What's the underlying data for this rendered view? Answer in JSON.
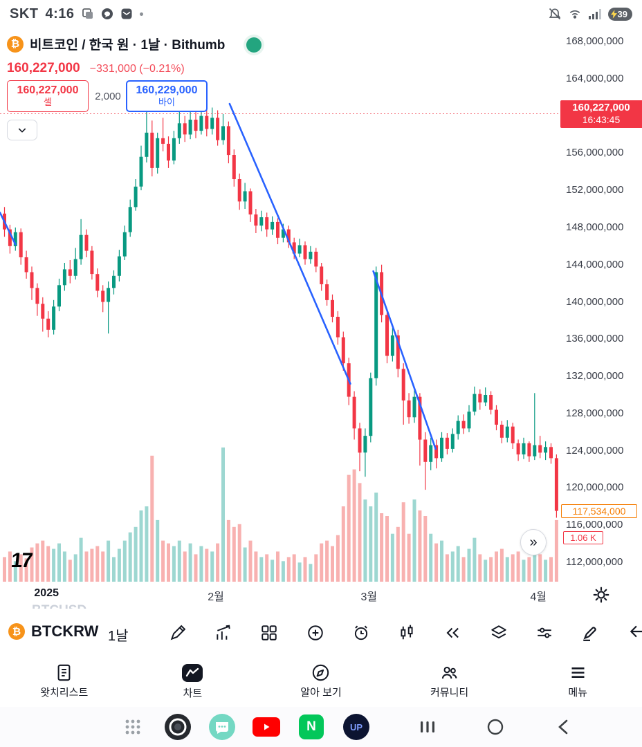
{
  "status_bar": {
    "carrier": "SKT",
    "time": "4:16",
    "battery_percent": "39"
  },
  "header": {
    "title": "비트코인 / 한국 원 · 1날 · Bithumb",
    "price": "160,227,000",
    "change": "−331,000 (−0.21%)",
    "sell_price": "160,227,000",
    "sell_label": "셀",
    "spread": "2,000",
    "buy_price": "160,229,000",
    "buy_label": "바이"
  },
  "chart": {
    "price_tag": {
      "price": "160,227,000",
      "time": "16:43:45"
    },
    "close_tag": "117,534,000",
    "volume_tag": "1.06 K",
    "expand_button": "»",
    "logo_text": "17"
  },
  "chart_data": {
    "type": "candlestick",
    "symbol": "BTCKRW",
    "exchange": "Bithumb",
    "interval": "1D",
    "unit": "million KRW",
    "current_price": 160.227,
    "last_close": 117.534,
    "y_ticks": [
      168,
      164,
      160,
      156,
      152,
      148,
      144,
      140,
      136,
      132,
      128,
      124,
      120,
      116,
      112
    ],
    "x_labels": [
      {
        "text": "2025",
        "index": 8,
        "bold": true
      },
      {
        "text": "2월",
        "index": 39,
        "bold": false
      },
      {
        "text": "3월",
        "index": 67,
        "bold": false
      },
      {
        "text": "4월",
        "index": 98,
        "bold": false
      }
    ],
    "scale": {
      "x0": 4,
      "dx": 7.9,
      "body": 5,
      "price_top": 168,
      "price_bottom": 112,
      "y_top": 60,
      "y_bottom": 813,
      "vol_base": 841,
      "vol_max": 198,
      "plot_right": 810
    },
    "colors": {
      "up": "#089981",
      "down": "#f23645",
      "vol_up": "rgba(38,166,154,0.45)",
      "vol_down": "rgba(239,83,80,0.45)",
      "trendline": "#2962ff"
    },
    "trendlines": [
      {
        "from": [
          -0.5,
          149.6
        ],
        "to": [
          2.3,
          146.2
        ]
      },
      {
        "from": [
          41.5,
          161.3
        ],
        "to": [
          63.6,
          131.2
        ]
      },
      {
        "from": [
          67.8,
          143.3
        ],
        "to": [
          79.2,
          124.2
        ]
      }
    ],
    "candles": [
      [
        149.5,
        150.2,
        147.0,
        147.8,
        0.18
      ],
      [
        147.8,
        148.3,
        145.2,
        146.0,
        0.22
      ],
      [
        146.0,
        148.0,
        145.5,
        147.5,
        0.15
      ],
      [
        147.5,
        147.9,
        144.0,
        144.8,
        0.2
      ],
      [
        144.8,
        145.5,
        142.5,
        143.2,
        0.17
      ],
      [
        143.2,
        143.8,
        140.2,
        141.5,
        0.25
      ],
      [
        141.5,
        142.0,
        138.5,
        139.8,
        0.28
      ],
      [
        139.8,
        140.5,
        136.8,
        138.2,
        0.3
      ],
      [
        138.2,
        139.0,
        136.2,
        137.0,
        0.26
      ],
      [
        137.0,
        140.2,
        136.5,
        139.5,
        0.24
      ],
      [
        139.5,
        142.5,
        139.0,
        141.8,
        0.28
      ],
      [
        141.8,
        144.2,
        141.2,
        143.5,
        0.22
      ],
      [
        143.5,
        144.5,
        142.0,
        142.8,
        0.16
      ],
      [
        142.8,
        145.8,
        142.4,
        144.6,
        0.2
      ],
      [
        144.6,
        148.9,
        144.0,
        147.2,
        0.32
      ],
      [
        147.2,
        147.8,
        144.8,
        145.5,
        0.22
      ],
      [
        145.5,
        146.0,
        142.4,
        143.0,
        0.24
      ],
      [
        143.0,
        143.6,
        140.5,
        141.2,
        0.26
      ],
      [
        141.2,
        141.8,
        138.9,
        140.0,
        0.22
      ],
      [
        140.0,
        142.2,
        136.6,
        141.5,
        0.3
      ],
      [
        141.5,
        143.4,
        140.8,
        142.8,
        0.18
      ],
      [
        142.8,
        145.6,
        142.2,
        144.9,
        0.24
      ],
      [
        144.9,
        148.2,
        144.5,
        147.5,
        0.3
      ],
      [
        147.5,
        151.0,
        147.0,
        150.2,
        0.36
      ],
      [
        150.2,
        153.2,
        149.8,
        152.4,
        0.4
      ],
      [
        152.4,
        156.8,
        152.0,
        155.6,
        0.52
      ],
      [
        155.6,
        160.8,
        155.0,
        158.2,
        0.55
      ],
      [
        158.2,
        159.5,
        153.5,
        154.4,
        0.92
      ],
      [
        154.4,
        158.2,
        153.8,
        157.6,
        0.45
      ],
      [
        157.6,
        159.8,
        156.2,
        157.0,
        0.3
      ],
      [
        157.0,
        157.8,
        154.4,
        155.2,
        0.28
      ],
      [
        155.2,
        158.4,
        154.8,
        157.6,
        0.26
      ],
      [
        157.6,
        160.5,
        157.0,
        159.2,
        0.3
      ],
      [
        159.2,
        160.0,
        157.2,
        158.0,
        0.22
      ],
      [
        158.0,
        160.9,
        157.5,
        159.6,
        0.28
      ],
      [
        159.6,
        160.4,
        157.6,
        158.4,
        0.2
      ],
      [
        158.4,
        161.0,
        158.0,
        160.0,
        0.26
      ],
      [
        160.0,
        160.8,
        157.8,
        158.6,
        0.24
      ],
      [
        158.6,
        160.9,
        158.0,
        159.8,
        0.22
      ],
      [
        159.8,
        160.6,
        156.8,
        157.4,
        0.28
      ],
      [
        157.4,
        160.2,
        156.9,
        158.9,
        0.98
      ],
      [
        158.9,
        159.4,
        154.9,
        155.8,
        0.45
      ],
      [
        155.8,
        156.4,
        152.4,
        153.2,
        0.4
      ],
      [
        153.2,
        153.8,
        149.9,
        150.8,
        0.42
      ],
      [
        150.8,
        152.8,
        150.0,
        151.9,
        0.25
      ],
      [
        151.9,
        152.2,
        148.6,
        149.4,
        0.3
      ],
      [
        149.4,
        150.0,
        147.4,
        148.2,
        0.22
      ],
      [
        148.2,
        149.8,
        147.6,
        149.1,
        0.18
      ],
      [
        149.1,
        149.6,
        147.0,
        147.8,
        0.2
      ],
      [
        147.8,
        149.2,
        147.2,
        148.6,
        0.16
      ],
      [
        148.6,
        149.0,
        146.2,
        146.9,
        0.22
      ],
      [
        146.9,
        148.4,
        146.4,
        147.8,
        0.15
      ],
      [
        147.8,
        148.2,
        145.8,
        146.4,
        0.18
      ],
      [
        146.4,
        146.9,
        144.6,
        145.2,
        0.2
      ],
      [
        145.2,
        146.8,
        144.8,
        146.1,
        0.14
      ],
      [
        146.1,
        146.5,
        144.0,
        144.6,
        0.18
      ],
      [
        144.6,
        146.0,
        144.1,
        145.4,
        0.13
      ],
      [
        145.4,
        145.8,
        143.2,
        143.8,
        0.2
      ],
      [
        143.8,
        144.2,
        141.2,
        141.9,
        0.28
      ],
      [
        141.9,
        142.4,
        139.6,
        140.2,
        0.3
      ],
      [
        140.2,
        140.8,
        137.8,
        138.4,
        0.26
      ],
      [
        138.4,
        139.0,
        135.4,
        136.2,
        0.34
      ],
      [
        136.2,
        136.8,
        132.6,
        133.4,
        0.55
      ],
      [
        133.4,
        134.0,
        128.9,
        129.8,
        0.78
      ],
      [
        129.8,
        130.4,
        125.2,
        126.4,
        0.82
      ],
      [
        126.4,
        127.0,
        121.8,
        123.8,
        0.72
      ],
      [
        123.8,
        126.4,
        121.2,
        125.6,
        0.6
      ],
      [
        125.6,
        132.4,
        124.9,
        131.8,
        0.55
      ],
      [
        131.8,
        143.8,
        131.0,
        143.2,
        0.65
      ],
      [
        143.2,
        144.0,
        137.8,
        138.6,
        0.5
      ],
      [
        138.6,
        139.2,
        133.4,
        134.2,
        0.48
      ],
      [
        134.2,
        137.2,
        133.6,
        136.4,
        0.35
      ],
      [
        136.4,
        137.0,
        131.9,
        132.8,
        0.4
      ],
      [
        132.8,
        133.4,
        126.8,
        129.4,
        0.58
      ],
      [
        129.4,
        130.2,
        126.9,
        127.6,
        0.35
      ],
      [
        127.6,
        130.6,
        127.0,
        129.8,
        0.6
      ],
      [
        129.8,
        130.2,
        122.4,
        125.2,
        0.52
      ],
      [
        125.2,
        126.0,
        119.8,
        122.8,
        0.48
      ],
      [
        122.8,
        125.4,
        121.9,
        124.6,
        0.35
      ],
      [
        124.6,
        125.2,
        122.1,
        123.2,
        0.28
      ],
      [
        123.2,
        126.0,
        122.8,
        125.4,
        0.3
      ],
      [
        125.4,
        125.9,
        123.6,
        124.2,
        0.2
      ],
      [
        124.2,
        126.4,
        123.8,
        125.8,
        0.22
      ],
      [
        125.8,
        127.8,
        125.2,
        127.2,
        0.26
      ],
      [
        127.2,
        127.9,
        125.8,
        126.4,
        0.18
      ],
      [
        126.4,
        128.9,
        126.0,
        128.2,
        0.24
      ],
      [
        128.2,
        130.9,
        127.8,
        130.1,
        0.32
      ],
      [
        130.1,
        130.6,
        128.4,
        129.2,
        0.2
      ],
      [
        129.2,
        130.8,
        128.8,
        130.0,
        0.16
      ],
      [
        130.0,
        130.4,
        127.9,
        128.4,
        0.18
      ],
      [
        128.4,
        128.9,
        126.2,
        126.8,
        0.22
      ],
      [
        126.8,
        127.2,
        124.8,
        125.4,
        0.24
      ],
      [
        125.4,
        127.3,
        124.9,
        126.6,
        0.18
      ],
      [
        126.6,
        127.0,
        124.2,
        124.8,
        0.2
      ],
      [
        124.8,
        125.2,
        122.9,
        123.6,
        0.22
      ],
      [
        123.6,
        125.4,
        123.1,
        124.8,
        0.16
      ],
      [
        124.8,
        125.0,
        122.8,
        123.4,
        0.18
      ],
      [
        123.4,
        130.2,
        123.0,
        124.6,
        0.28
      ],
      [
        124.6,
        125.6,
        123.2,
        123.8,
        0.2
      ],
      [
        123.8,
        125.0,
        123.0,
        124.4,
        0.16
      ],
      [
        124.4,
        124.8,
        122.6,
        123.2,
        0.18
      ],
      [
        123.2,
        123.6,
        116.8,
        117.534,
        0.45
      ]
    ]
  },
  "toolbar": {
    "ghost_top": "BTCUSD",
    "symbol": "BTCKRW",
    "ghost_bottom": "BTCUSD",
    "interval": "1날"
  },
  "bottom_nav": {
    "items": [
      {
        "label": "왓치리스트"
      },
      {
        "label": "차트",
        "active": true
      },
      {
        "label": "알아 보기"
      },
      {
        "label": "커뮤니티"
      },
      {
        "label": "메뉴"
      }
    ]
  },
  "dock": {
    "naver_letter": "N",
    "up_text": "UP"
  }
}
